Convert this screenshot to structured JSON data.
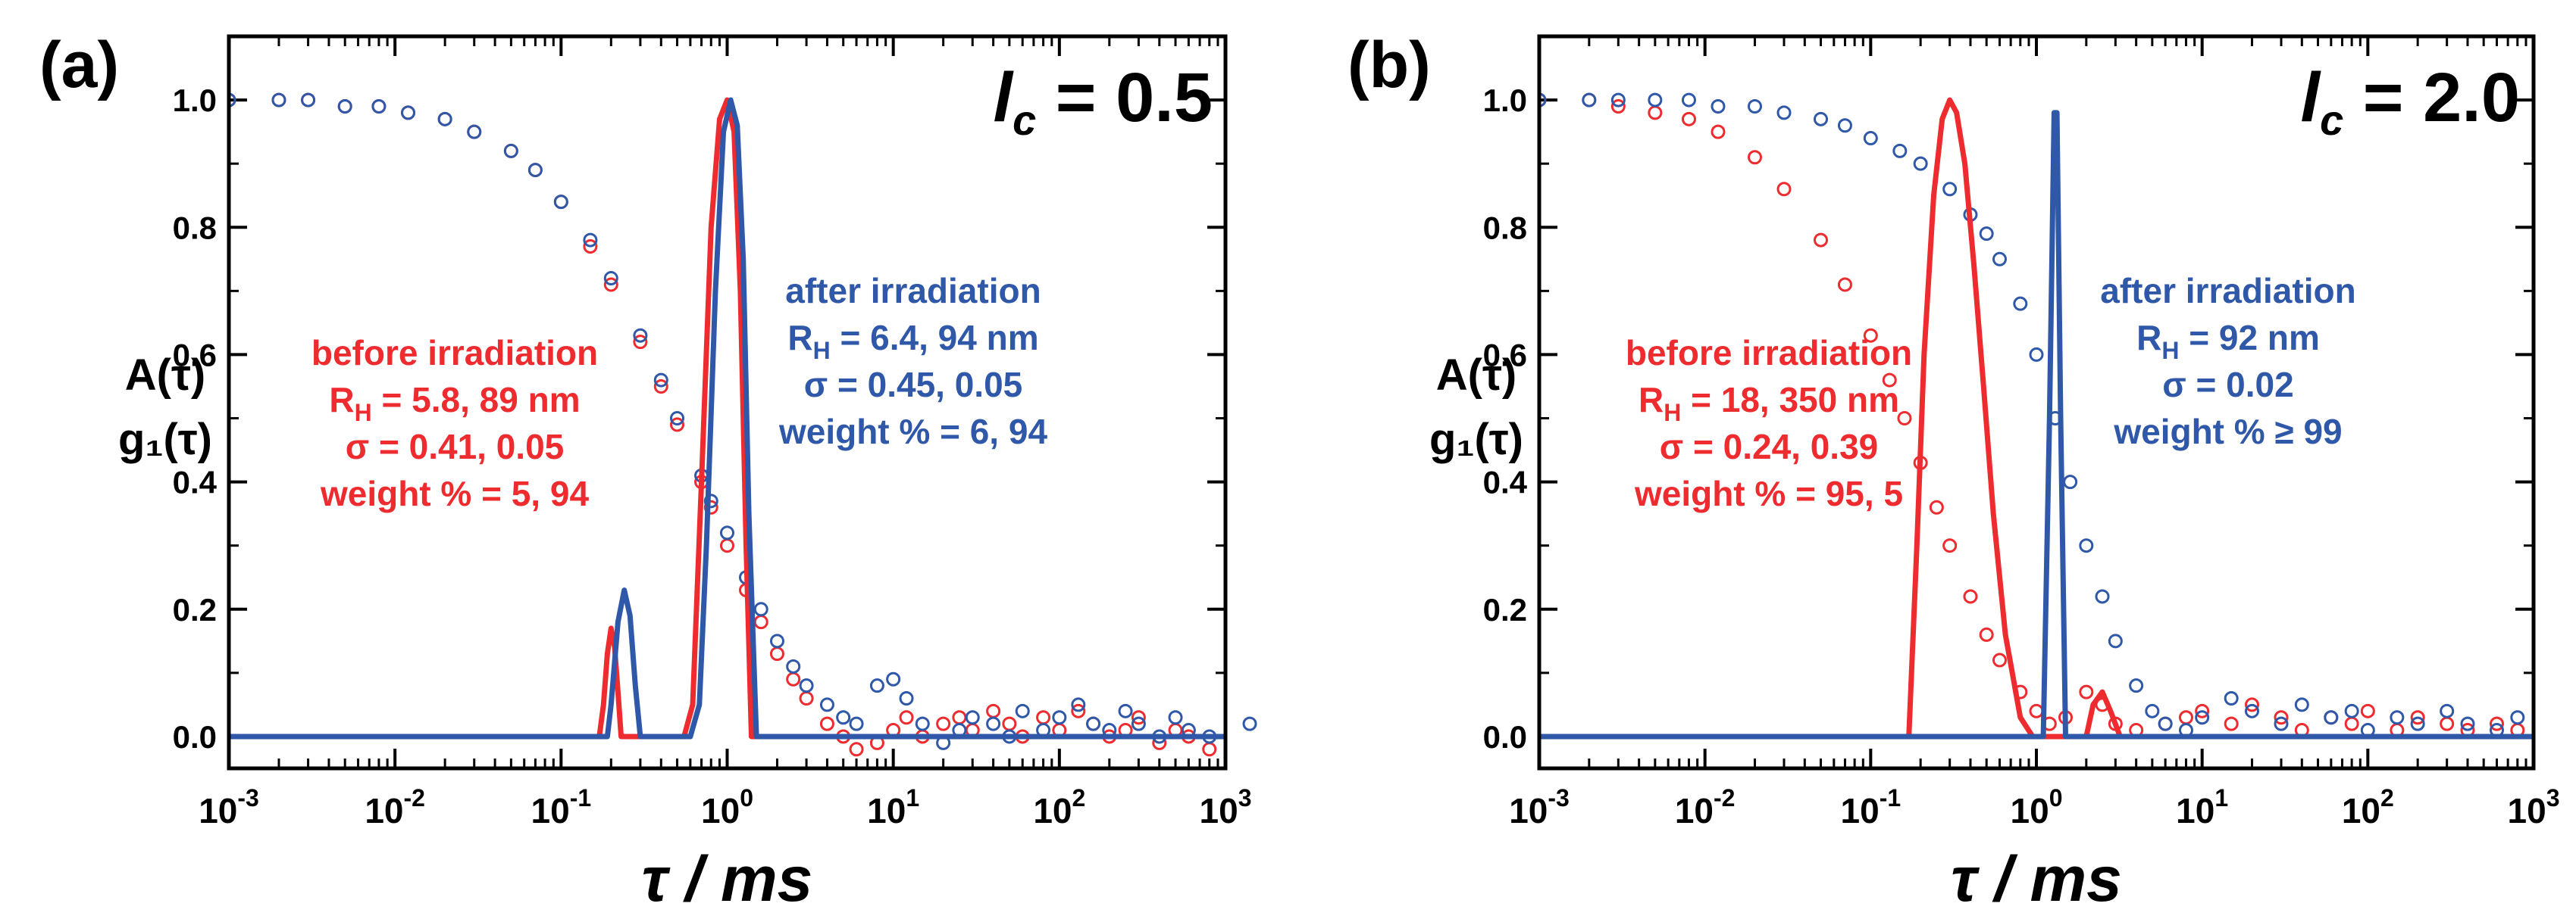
{
  "colors": {
    "before": "#ee2b2e",
    "after": "#2f58a8",
    "axis": "#000000"
  },
  "chart_data": [
    {
      "type": "line",
      "panel": "(a)",
      "lc_label": {
        "symbol": "l",
        "sub": "c",
        "rest": " = 0.5"
      },
      "ylabel_lines": [
        "A(τ)",
        "g₁(τ)"
      ],
      "xlabel": "τ / ms",
      "x_scale": "log",
      "xlim": [
        0.001,
        1000
      ],
      "ylim": [
        -0.05,
        1.1
      ],
      "xtick_exponents": [
        "-3",
        "-2",
        "-1",
        "0",
        "1",
        "2",
        "3"
      ],
      "ytick_labels": [
        "0.0",
        "0.2",
        "0.4",
        "0.6",
        "0.8",
        "1.0"
      ],
      "yticks": [
        0,
        0.2,
        0.4,
        0.6,
        0.8,
        1.0
      ],
      "before_text": [
        "before irradiation",
        "R_H = 5.8, 89 nm",
        "σ = 0.41, 0.05",
        "weight % = 5, 94"
      ],
      "after_text": [
        "after irradiation",
        "R_H = 6.4, 94 nm",
        "σ = 0.45, 0.05",
        "weight % = 6, 94"
      ],
      "before_fit": {
        "name": "before irradiation A(τ)",
        "x": [
          0.001,
          0.17,
          0.18,
          0.19,
          0.2,
          0.21,
          0.22,
          0.23,
          0.55,
          0.62,
          0.7,
          0.8,
          0.9,
          1.0,
          1.1,
          1.2,
          1.3,
          1.4,
          1000
        ],
        "y": [
          0,
          0,
          0.05,
          0.13,
          0.17,
          0.14,
          0.07,
          0,
          0,
          0.05,
          0.4,
          0.8,
          0.97,
          1.0,
          0.95,
          0.7,
          0.3,
          0,
          0
        ]
      },
      "after_fit": {
        "name": "after irradiation A(τ)",
        "x": [
          0.001,
          0.19,
          0.2,
          0.22,
          0.24,
          0.26,
          0.28,
          0.3,
          0.6,
          0.68,
          0.75,
          0.85,
          0.95,
          1.05,
          1.15,
          1.25,
          1.35,
          1.5,
          1000
        ],
        "y": [
          0,
          0,
          0.05,
          0.18,
          0.23,
          0.19,
          0.08,
          0,
          0,
          0.05,
          0.3,
          0.7,
          0.95,
          1.0,
          0.96,
          0.75,
          0.35,
          0,
          0
        ]
      },
      "before_g1": {
        "name": "before irradiation g1(τ)",
        "x": [
          0.001,
          0.002,
          0.003,
          0.005,
          0.008,
          0.012,
          0.02,
          0.03,
          0.05,
          0.07,
          0.1,
          0.15,
          0.2,
          0.3,
          0.4,
          0.5,
          0.7,
          0.8,
          1.0,
          1.3,
          1.6,
          2,
          2.5,
          3,
          4,
          5,
          6,
          8,
          10,
          12,
          15,
          20,
          25,
          30,
          40,
          50,
          60,
          80,
          100,
          130,
          160,
          200,
          250,
          300,
          400,
          500,
          600,
          800
        ],
        "y": [
          1.0,
          1.0,
          1.0,
          0.99,
          0.99,
          0.98,
          0.97,
          0.95,
          0.92,
          0.89,
          0.84,
          0.77,
          0.71,
          0.62,
          0.55,
          0.49,
          0.4,
          0.36,
          0.3,
          0.23,
          0.18,
          0.13,
          0.09,
          0.06,
          0.02,
          0.0,
          -0.02,
          -0.01,
          0.01,
          0.03,
          0.0,
          0.02,
          0.03,
          0.01,
          0.04,
          0.02,
          0.0,
          0.03,
          0.01,
          0.04,
          0.02,
          0.0,
          0.01,
          0.03,
          -0.01,
          0.01,
          0.0,
          -0.02
        ]
      },
      "after_g1": {
        "name": "after irradiation g1(τ)",
        "x": [
          0.001,
          0.002,
          0.003,
          0.005,
          0.008,
          0.012,
          0.02,
          0.03,
          0.05,
          0.07,
          0.1,
          0.15,
          0.2,
          0.3,
          0.4,
          0.5,
          0.7,
          0.8,
          1.0,
          1.3,
          1.6,
          2,
          2.5,
          3,
          4,
          5,
          6,
          8,
          10,
          12,
          15,
          20,
          25,
          30,
          40,
          50,
          60,
          80,
          100,
          130,
          160,
          200,
          250,
          300,
          400,
          500,
          600,
          800,
          1400
        ],
        "y": [
          1.0,
          1.0,
          1.0,
          0.99,
          0.99,
          0.98,
          0.97,
          0.95,
          0.92,
          0.89,
          0.84,
          0.78,
          0.72,
          0.63,
          0.56,
          0.5,
          0.41,
          0.37,
          0.32,
          0.25,
          0.2,
          0.15,
          0.11,
          0.08,
          0.05,
          0.03,
          0.02,
          0.08,
          0.09,
          0.06,
          0.02,
          -0.01,
          0.01,
          0.03,
          0.02,
          0.0,
          0.04,
          0.01,
          0.03,
          0.05,
          0.02,
          0.01,
          0.04,
          0.02,
          0.0,
          0.03,
          0.01,
          0.0,
          0.02
        ]
      }
    },
    {
      "type": "line",
      "panel": "(b)",
      "lc_label": {
        "symbol": "l",
        "sub": "c",
        "rest": " = 2.0"
      },
      "ylabel_lines": [
        "A(τ)",
        "g₁(τ)"
      ],
      "xlabel": "τ / ms",
      "x_scale": "log",
      "xlim": [
        0.001,
        1000
      ],
      "ylim": [
        -0.05,
        1.1
      ],
      "xtick_exponents": [
        "-3",
        "-2",
        "-1",
        "0",
        "1",
        "2",
        "3"
      ],
      "ytick_labels": [
        "0.0",
        "0.2",
        "0.4",
        "0.6",
        "0.8",
        "1.0"
      ],
      "yticks": [
        0,
        0.2,
        0.4,
        0.6,
        0.8,
        1.0
      ],
      "before_text": [
        "before irradiation",
        "R_H = 18, 350 nm",
        "σ = 0.24, 0.39",
        "weight % = 95, 5"
      ],
      "after_text": [
        "after irradiation",
        "R_H = 92 nm",
        "σ = 0.02",
        "weight % ≥ 99"
      ],
      "before_fit": {
        "name": "before irradiation A(τ)",
        "x": [
          0.001,
          0.17,
          0.19,
          0.21,
          0.24,
          0.27,
          0.3,
          0.33,
          0.37,
          0.42,
          0.48,
          0.55,
          0.65,
          0.8,
          0.95,
          2.0,
          2.2,
          2.5,
          2.8,
          3.2,
          1000
        ],
        "y": [
          0,
          0,
          0.3,
          0.6,
          0.85,
          0.97,
          1.0,
          0.98,
          0.9,
          0.74,
          0.55,
          0.35,
          0.16,
          0.03,
          0,
          0,
          0.05,
          0.07,
          0.04,
          0,
          0
        ]
      },
      "after_fit": {
        "name": "after irradiation A(τ)",
        "x": [
          0.001,
          1.1,
          1.2,
          1.28,
          1.33,
          1.4,
          1.5,
          1000
        ],
        "y": [
          0,
          0,
          0.5,
          0.98,
          0.98,
          0.5,
          0,
          0
        ]
      },
      "before_g1": {
        "name": "before irradiation g1(τ)",
        "x": [
          0.001,
          0.002,
          0.003,
          0.005,
          0.008,
          0.012,
          0.02,
          0.03,
          0.05,
          0.07,
          0.1,
          0.13,
          0.16,
          0.2,
          0.25,
          0.3,
          0.4,
          0.5,
          0.6,
          0.8,
          1.0,
          1.2,
          1.5,
          2,
          2.5,
          3,
          4,
          6,
          8,
          10,
          15,
          20,
          30,
          40,
          60,
          80,
          100,
          150,
          200,
          300,
          400,
          600,
          800
        ],
        "y": [
          1.0,
          1.0,
          0.99,
          0.98,
          0.97,
          0.95,
          0.91,
          0.86,
          0.78,
          0.71,
          0.63,
          0.56,
          0.5,
          0.43,
          0.36,
          0.3,
          0.22,
          0.16,
          0.12,
          0.07,
          0.04,
          0.02,
          0.03,
          0.07,
          0.05,
          0.02,
          0.01,
          0.02,
          0.03,
          0.04,
          0.02,
          0.05,
          0.03,
          0.01,
          0.03,
          0.02,
          0.04,
          0.01,
          0.03,
          0.02,
          0.01,
          0.02,
          0.01
        ]
      },
      "after_g1": {
        "name": "after irradiation g1(τ)",
        "x": [
          0.001,
          0.002,
          0.003,
          0.005,
          0.008,
          0.012,
          0.02,
          0.03,
          0.05,
          0.07,
          0.1,
          0.15,
          0.2,
          0.3,
          0.4,
          0.5,
          0.6,
          0.8,
          1.0,
          1.3,
          1.6,
          2,
          2.5,
          3,
          4,
          5,
          6,
          8,
          10,
          15,
          20,
          30,
          40,
          60,
          80,
          100,
          150,
          200,
          300,
          400,
          600,
          800
        ],
        "y": [
          1.0,
          1.0,
          1.0,
          1.0,
          1.0,
          0.99,
          0.99,
          0.98,
          0.97,
          0.96,
          0.94,
          0.92,
          0.9,
          0.86,
          0.82,
          0.79,
          0.75,
          0.68,
          0.6,
          0.5,
          0.4,
          0.3,
          0.22,
          0.15,
          0.08,
          0.04,
          0.02,
          0.01,
          0.03,
          0.06,
          0.04,
          0.02,
          0.05,
          0.03,
          0.04,
          0.01,
          0.03,
          0.02,
          0.04,
          0.02,
          0.01,
          0.03
        ]
      }
    }
  ]
}
